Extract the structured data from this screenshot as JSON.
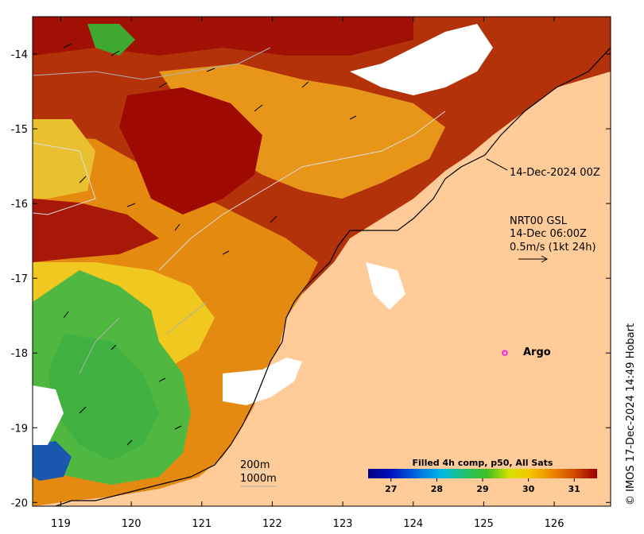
{
  "map": {
    "x_ticks": [
      "119",
      "120",
      "121",
      "122",
      "123",
      "124",
      "125",
      "126"
    ],
    "y_ticks": [
      "-14",
      "-15",
      "-16",
      "-17",
      "-18",
      "-19",
      "-20"
    ],
    "x_range": [
      118.6,
      126.8
    ],
    "y_range": [
      -20.05,
      -13.5
    ],
    "legend_time": "14-Dec-2024 00Z",
    "current_label": {
      "line1": "NRT00 GSL",
      "line2": "14-Dec 06:00Z",
      "line3": "0.5m/s (1kt 24h)"
    },
    "argo": {
      "label": "Argo",
      "lon": 125.3,
      "lat": -18.0,
      "color": "#ff00ff"
    },
    "depth_labels": [
      "200m",
      "1000m"
    ],
    "colorbar": {
      "title": "Filled 4h comp, p50, All Sats",
      "ticks": [
        "27",
        "28",
        "29",
        "30",
        "31"
      ],
      "min": 26.5,
      "max": 31.5
    },
    "credit": "© IMOS 17-Dec-2024 14:49 Hobart",
    "colors": {
      "land": "#ffcc99",
      "hot": "#9e0a02",
      "orange": "#e07a00",
      "yellow": "#f2d000",
      "green": "#3fb83f",
      "blue": "#0a3fa8"
    }
  }
}
